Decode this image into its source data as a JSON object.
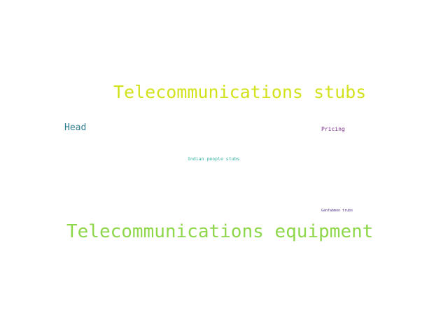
{
  "words": [
    {
      "text": "Telecommunications stubs",
      "color": "#d2e21b"
    },
    {
      "text": "Head",
      "color": "#2f7d91"
    },
    {
      "text": "Pricing",
      "color": "#7b2a8d"
    },
    {
      "text": "Indian people stubs",
      "color": "#2fb0a0"
    },
    {
      "text": "Ganfabmon trubs",
      "color": "#4a2a8a"
    },
    {
      "text": "Telecommunications equipment",
      "color": "#8fd74b"
    }
  ]
}
